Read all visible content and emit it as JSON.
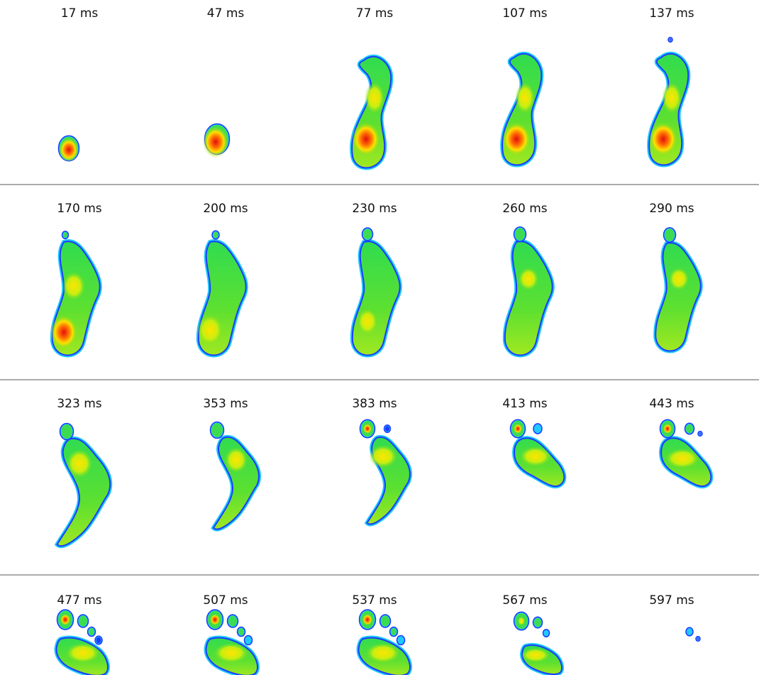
{
  "frames": [
    {
      "label": "17 ms"
    },
    {
      "label": "47 ms"
    },
    {
      "label": "77 ms"
    },
    {
      "label": "107 ms"
    },
    {
      "label": "137 ms"
    },
    {
      "label": "170 ms"
    },
    {
      "label": "200 ms"
    },
    {
      "label": "230 ms"
    },
    {
      "label": "260 ms"
    },
    {
      "label": "290 ms"
    },
    {
      "label": "323 ms"
    },
    {
      "label": "353 ms"
    },
    {
      "label": "383 ms"
    },
    {
      "label": "413 ms"
    },
    {
      "label": "443 ms"
    },
    {
      "label": "477 ms"
    },
    {
      "label": "507 ms"
    },
    {
      "label": "537 ms"
    },
    {
      "label": "567 ms"
    },
    {
      "label": "597 ms"
    }
  ]
}
